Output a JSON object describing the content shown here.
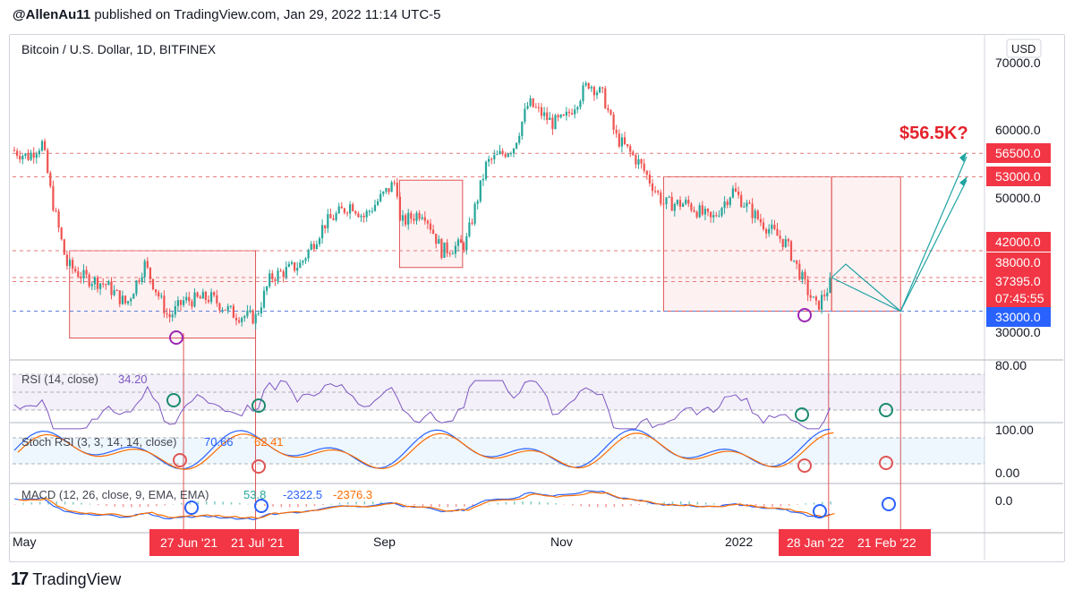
{
  "header": {
    "author": "@AllenAu11",
    "published": "published on TradingView.com, Jan 29, 2022 11:14 UTC-5"
  },
  "footer": {
    "brand": "TradingView",
    "logo_glyph": "17"
  },
  "symbol_title": "Bitcoin / U.S. Dollar, 1D, BITFINEX",
  "currency_button": "USD",
  "annotation": "$56.5K?",
  "colors": {
    "up": "#26a69a",
    "down": "#ef5350",
    "rsi": "#7e57c2",
    "macd": "#2962ff",
    "signal": "#ff6d00",
    "label_red": "#f23645",
    "label_blue": "#2962ff",
    "teal": "#1fa3a3"
  },
  "indicators": {
    "rsi": {
      "name": "RSI (14, close)",
      "value": "34.20"
    },
    "stoch": {
      "name": "Stoch RSI (3, 3, 14, 14, close)",
      "k": "70.66",
      "d": "62.41"
    },
    "macd": {
      "name": "MACD (12, 26, close, 9, EMA, EMA)",
      "hist": "53.8",
      "macd": "-2322.5",
      "signal": "-2376.3"
    }
  },
  "price_labels": [
    {
      "text": "56500.0",
      "kind": "red"
    },
    {
      "text": "53000.0",
      "kind": "red"
    },
    {
      "text": "42000.0",
      "kind": "red"
    },
    {
      "text": "38000.0",
      "kind": "red"
    },
    {
      "text": "37395.0",
      "kind": "red"
    },
    {
      "text": "07:45:55",
      "kind": "red"
    },
    {
      "text": "33000.0",
      "kind": "blue"
    }
  ],
  "axis_ticks": {
    "price": [
      "70000.0",
      "60000.0",
      "50000.0",
      "30000.0"
    ],
    "rsi": [
      "80.00"
    ],
    "stoch": [
      "100.00",
      "0.00"
    ],
    "macd": [
      "0.0"
    ],
    "time": [
      "May",
      "Sep",
      "Nov",
      "2022"
    ]
  },
  "date_labels": [
    "27 Jun '21",
    "21 Jul '21",
    "28 Jan '22",
    "21 Feb '22"
  ],
  "chart_data": {
    "type": "candlestick",
    "title": "Bitcoin / U.S. Dollar, 1D, BITFINEX",
    "x_range": [
      "2021-05-01",
      "2022-03-15"
    ],
    "y_range": [
      27000,
      71000
    ],
    "close_path": {
      "dates": [
        "2021-05-01",
        "2021-05-06",
        "2021-05-11",
        "2021-05-14",
        "2021-05-19",
        "2021-05-25",
        "2021-06-01",
        "2021-06-08",
        "2021-06-14",
        "2021-06-22",
        "2021-06-27",
        "2021-07-06",
        "2021-07-14",
        "2021-07-21",
        "2021-07-26",
        "2021-08-05",
        "2021-08-13",
        "2021-08-22",
        "2021-08-26",
        "2021-09-06",
        "2021-09-07",
        "2021-09-15",
        "2021-09-21",
        "2021-09-29",
        "2021-10-06",
        "2021-10-15",
        "2021-10-20",
        "2021-10-28",
        "2021-11-01",
        "2021-11-09",
        "2021-11-14",
        "2021-11-18",
        "2021-11-26",
        "2021-12-04",
        "2021-12-12",
        "2021-12-20",
        "2021-12-27",
        "2022-01-05",
        "2022-01-14",
        "2022-01-21",
        "2022-01-24",
        "2022-01-29"
      ],
      "values": [
        57000,
        56000,
        58000,
        50000,
        40000,
        38000,
        37000,
        34000,
        40000,
        32000,
        34500,
        35000,
        32500,
        32000,
        38000,
        40000,
        46000,
        49000,
        47000,
        52500,
        46000,
        48000,
        42000,
        43000,
        55000,
        57500,
        64000,
        61000,
        61500,
        67000,
        65000,
        59000,
        55000,
        49000,
        49000,
        46500,
        51000,
        46500,
        43000,
        36000,
        33500,
        37395
      ]
    },
    "levels": [
      56500,
      53000,
      42000,
      38000,
      37395,
      33000
    ],
    "boxes": [
      {
        "from": "2021-05-20",
        "to": "2021-07-21",
        "low": 29000,
        "high": 42000
      },
      {
        "from": "2021-09-07",
        "to": "2021-09-28",
        "low": 39500,
        "high": 52500
      },
      {
        "from": "2021-12-04",
        "to": "2022-01-29",
        "low": 33000,
        "high": 53000
      },
      {
        "from": "2022-01-29",
        "to": "2022-02-21",
        "low": 33000,
        "high": 53000
      }
    ],
    "rsi": {
      "last": 34.2
    },
    "stoch_rsi": {
      "k_last": 70.66,
      "d_last": 62.41
    },
    "macd": {
      "hist_last": 53.8,
      "macd_last": -2322.5,
      "signal_last": -2376.3
    }
  }
}
